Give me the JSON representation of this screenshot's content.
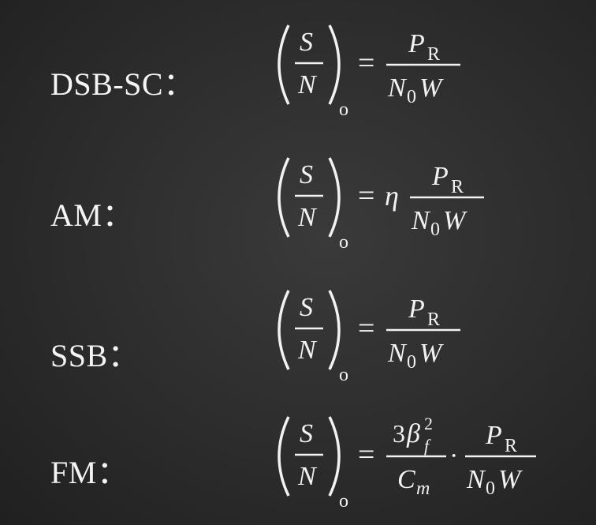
{
  "rows": [
    {
      "label": "DSB-SC：",
      "lhs": {
        "num": "S",
        "den": "N",
        "sub": "o"
      },
      "equals": "=",
      "coef": "",
      "rhs": {
        "num": "P",
        "num_sub": "R",
        "den": "N",
        "den_sub": "0",
        "den_tail": "W"
      }
    },
    {
      "label": "AM：",
      "lhs": {
        "num": "S",
        "den": "N",
        "sub": "o"
      },
      "equals": "=",
      "coef": "η",
      "rhs": {
        "num": "P",
        "num_sub": "R",
        "den": "N",
        "den_sub": "0",
        "den_tail": "W"
      }
    },
    {
      "label": "SSB：",
      "lhs": {
        "num": "S",
        "den": "N",
        "sub": "o"
      },
      "equals": "=",
      "coef": "",
      "rhs": {
        "num": "P",
        "num_sub": "R",
        "den": "N",
        "den_sub": "0",
        "den_tail": "W"
      }
    },
    {
      "label": "FM：",
      "lhs": {
        "num": "S",
        "den": "N",
        "sub": "o"
      },
      "equals": "=",
      "fm_frac": {
        "num_coef": "3",
        "num_sym": "β",
        "num_sub": "f",
        "num_sup": "2",
        "den": "C",
        "den_sub": "m"
      },
      "dot": "·",
      "rhs": {
        "num": "P",
        "num_sub": "R",
        "den": "N",
        "den_sub": "0",
        "den_tail": "W"
      }
    }
  ]
}
